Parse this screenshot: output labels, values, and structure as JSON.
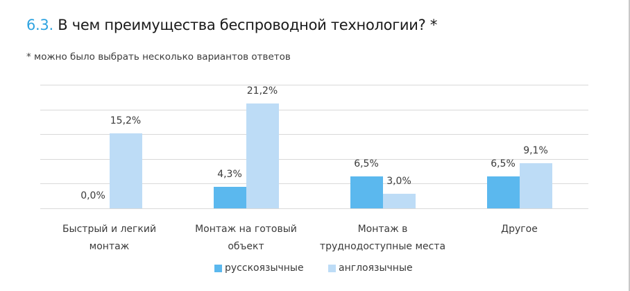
{
  "header": {
    "number": "6.3.",
    "title": "В чем преимущества беспроводной технологии? *",
    "subtitle": "* можно было выбрать несколько вариантов ответов"
  },
  "colors": {
    "accent": "#2ea3e0",
    "series_ru": "#5bb8ee",
    "series_en": "#bddcf6",
    "grid": "#d9d9d9"
  },
  "chart_data": {
    "type": "bar",
    "title": "В чем преимущества беспроводной технологии? *",
    "subtitle": "* можно было выбрать несколько вариантов ответов",
    "categories": [
      "Быстрый и легкий монтаж",
      "Монтаж на готовый объект",
      "Монтаж в труднодоступные места",
      "Другое"
    ],
    "category_lines": [
      [
        "Быстрый и легкий",
        "монтаж"
      ],
      [
        "Монтаж на готовый",
        "объект"
      ],
      [
        "Монтаж в",
        "труднодоступные места"
      ],
      [
        "Другое"
      ]
    ],
    "series": [
      {
        "name": "русскоязычные",
        "color": "#5bb8ee",
        "values": [
          0.0,
          4.3,
          6.5,
          6.5
        ],
        "labels": [
          "0,0%",
          "4,3%",
          "6,5%",
          "6,5%"
        ]
      },
      {
        "name": "англоязычные",
        "color": "#bddcf6",
        "values": [
          15.2,
          21.2,
          3.0,
          9.1
        ],
        "labels": [
          "15,2%",
          "21,2%",
          "3,0%",
          "9,1%"
        ]
      }
    ],
    "xlabel": "",
    "ylabel": "",
    "ylim": [
      0,
      25
    ],
    "y_axis_visible": false,
    "grid": true,
    "gridline_step": 5,
    "legend_position": "bottom",
    "unit": "%"
  },
  "legend": {
    "items": [
      {
        "label": "русскоязычные"
      },
      {
        "label": "англоязычные"
      }
    ]
  }
}
